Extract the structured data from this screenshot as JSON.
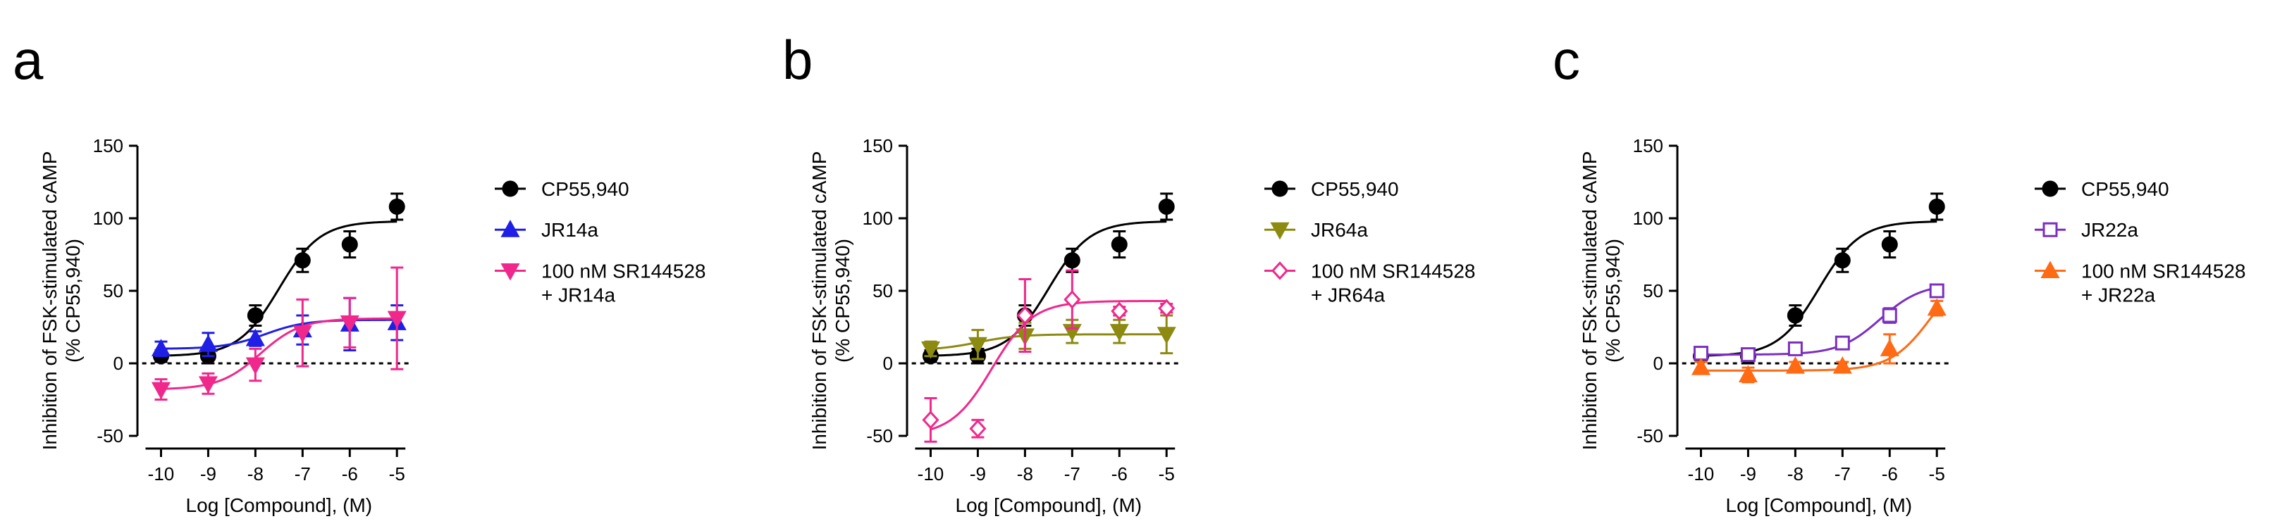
{
  "figure": {
    "colors": {
      "axis": "#000000",
      "CP55940": "#000000",
      "blue": "#1f1fe6",
      "pink": "#f0288c",
      "olive": "#8c8a10",
      "pinkOpen": "#f0288c",
      "purple": "#7b2fbe",
      "orange": "#ff6a13"
    }
  },
  "chart_data": [
    {
      "panel_label": "a",
      "type": "scatter",
      "title": "",
      "xlabel": "Log [Compound], (M)",
      "ylabel_line1": "Inhibition of FSK-stimulated cAMP",
      "ylabel_line2": "(% CP55,940)",
      "xlim": [
        -10.5,
        -4.6
      ],
      "ylim": [
        -50,
        150
      ],
      "xticks": [
        -10,
        -9,
        -8,
        -7,
        -6,
        -5
      ],
      "xtick_labels": [
        "-10",
        "-9",
        "-8",
        "-7",
        "-6",
        "-5"
      ],
      "yticks": [
        -50,
        0,
        50,
        100,
        150
      ],
      "ytick_labels": [
        "-50",
        "0",
        "50",
        "100",
        "150"
      ],
      "zero_line": "dotted",
      "legend": "right",
      "series": [
        {
          "name": "CP55,940",
          "label_lines": [
            "CP55,940"
          ],
          "marker": "circle",
          "fill": "filled",
          "color": "#000000",
          "x": [
            -10,
            -9,
            -8,
            -7,
            -6,
            -5
          ],
          "y": [
            5,
            5,
            33,
            71,
            82,
            108
          ],
          "err": [
            4,
            5,
            7,
            8,
            9,
            9
          ],
          "fit": {
            "bottom": 5,
            "top": 98,
            "logEC50": -7.5
          }
        },
        {
          "name": "JR14a",
          "label_lines": [
            "JR14a"
          ],
          "marker": "triangle-up",
          "fill": "filled",
          "color": "#1f1fe6",
          "x": [
            -10,
            -9,
            -8,
            -7,
            -6,
            -5
          ],
          "y": [
            10,
            13,
            17,
            23,
            27,
            28
          ],
          "err": [
            5,
            8,
            5,
            10,
            18,
            12
          ],
          "fit": {
            "bottom": 10,
            "top": 30,
            "logEC50": -7.8
          }
        },
        {
          "name": "100 nM SR144528 + JR14a",
          "label_lines": [
            "100 nM SR144528",
            "+ JR14a"
          ],
          "marker": "triangle-down",
          "fill": "filled",
          "color": "#f0288c",
          "x": [
            -10,
            -9,
            -8,
            -7,
            -6,
            -5
          ],
          "y": [
            -18,
            -14,
            -1,
            21,
            28,
            31
          ],
          "err": [
            7,
            7,
            11,
            23,
            17,
            35
          ],
          "fit": {
            "bottom": -18,
            "top": 31,
            "logEC50": -7.9
          }
        }
      ]
    },
    {
      "panel_label": "b",
      "type": "scatter",
      "title": "",
      "xlabel": "Log [Compound], (M)",
      "ylabel_line1": "Inhibition of FSK-stimulated cAMP",
      "ylabel_line2": "(% CP55,940)",
      "xlim": [
        -10.5,
        -4.6
      ],
      "ylim": [
        -50,
        150
      ],
      "xticks": [
        -10,
        -9,
        -8,
        -7,
        -6,
        -5
      ],
      "xtick_labels": [
        "-10",
        "-9",
        "-8",
        "-7",
        "-6",
        "-5"
      ],
      "yticks": [
        -50,
        0,
        50,
        100,
        150
      ],
      "ytick_labels": [
        "-50",
        "0",
        "50",
        "100",
        "150"
      ],
      "zero_line": "dotted",
      "legend": "right",
      "series": [
        {
          "name": "CP55,940",
          "label_lines": [
            "CP55,940"
          ],
          "marker": "circle",
          "fill": "filled",
          "color": "#000000",
          "x": [
            -10,
            -9,
            -8,
            -7,
            -6,
            -5
          ],
          "y": [
            5,
            5,
            33,
            71,
            82,
            108
          ],
          "err": [
            4,
            5,
            7,
            8,
            9,
            9
          ],
          "fit": {
            "bottom": 5,
            "top": 98,
            "logEC50": -7.5
          }
        },
        {
          "name": "JR64a",
          "label_lines": [
            "JR64a"
          ],
          "marker": "triangle-down",
          "fill": "filled",
          "color": "#8c8a10",
          "x": [
            -10,
            -9,
            -8,
            -7,
            -6,
            -5
          ],
          "y": [
            10,
            13,
            19,
            22,
            22,
            20
          ],
          "err": [
            5,
            10,
            9,
            8,
            8,
            13
          ],
          "fit": {
            "bottom": 9,
            "top": 20,
            "logEC50": -9.0
          }
        },
        {
          "name": "100 nM SR144528 + JR64a",
          "label_lines": [
            "100 nM SR144528",
            "+ JR64a"
          ],
          "marker": "diamond",
          "fill": "open",
          "color": "#f0288c",
          "x": [
            -10,
            -9,
            -8,
            -7,
            -6,
            -5
          ],
          "y": [
            -39,
            -45,
            33,
            44,
            36,
            38
          ],
          "err": [
            15,
            6,
            25,
            20,
            3,
            3
          ],
          "fit": {
            "bottom": -50,
            "top": 43,
            "logEC50": -8.7
          }
        }
      ]
    },
    {
      "panel_label": "c",
      "type": "scatter",
      "title": "",
      "xlabel": "Log [Compound], (M)",
      "ylabel_line1": "Inhibition of FSK-stimulated cAMP",
      "ylabel_line2": "(% CP55,940)",
      "xlim": [
        -10.5,
        -4.6
      ],
      "ylim": [
        -50,
        150
      ],
      "xticks": [
        -10,
        -9,
        -8,
        -7,
        -6,
        -5
      ],
      "xtick_labels": [
        "-10",
        "-9",
        "-8",
        "-7",
        "-6",
        "-5"
      ],
      "yticks": [
        -50,
        0,
        50,
        100,
        150
      ],
      "ytick_labels": [
        "-50",
        "0",
        "50",
        "100",
        "150"
      ],
      "zero_line": "dotted",
      "legend": "right",
      "series": [
        {
          "name": "CP55,940",
          "label_lines": [
            "CP55,940"
          ],
          "marker": "circle",
          "fill": "filled",
          "color": "#000000",
          "x": [
            -10,
            -9,
            -8,
            -7,
            -6,
            -5
          ],
          "y": [
            5,
            5,
            33,
            71,
            82,
            108
          ],
          "err": [
            4,
            5,
            7,
            8,
            9,
            9
          ],
          "fit": {
            "bottom": 5,
            "top": 98,
            "logEC50": -7.5
          }
        },
        {
          "name": "JR22a",
          "label_lines": [
            "JR22a"
          ],
          "marker": "square",
          "fill": "open",
          "color": "#7b2fbe",
          "x": [
            -10,
            -9,
            -8,
            -7,
            -6,
            -5
          ],
          "y": [
            7,
            6,
            10,
            14,
            33,
            50
          ],
          "err": [
            3,
            3,
            4,
            4,
            5,
            4
          ],
          "fit": {
            "bottom": 6,
            "top": 55,
            "logEC50": -6.2
          }
        },
        {
          "name": "100 nM SR144528 + JR22a",
          "label_lines": [
            "100 nM SR144528",
            "+ JR22a"
          ],
          "marker": "triangle-up",
          "fill": "filled",
          "color": "#ff6a13",
          "x": [
            -10,
            -9,
            -8,
            -7,
            -6,
            -5
          ],
          "y": [
            -3,
            -8,
            -2,
            -2,
            10,
            38
          ],
          "err": [
            4,
            5,
            3,
            3,
            10,
            5
          ],
          "fit": {
            "bottom": -5,
            "top": 70,
            "logEC50": -5.1
          }
        }
      ]
    }
  ]
}
